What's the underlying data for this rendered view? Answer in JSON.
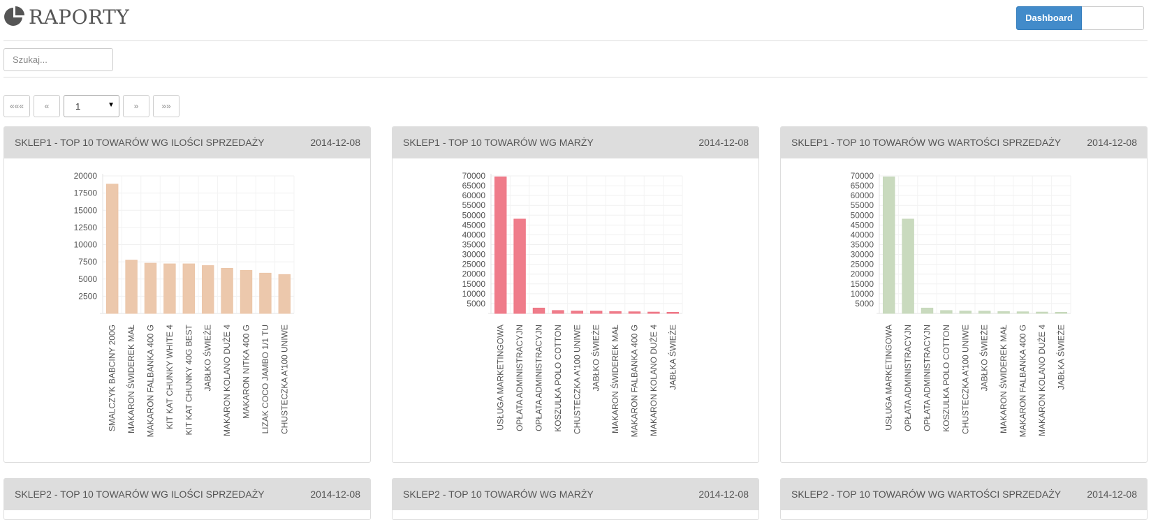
{
  "header": {
    "title": "RAPORTY",
    "logo_icon": "pie-chart-icon",
    "dashboard_label": "Dashboard"
  },
  "search": {
    "placeholder": "Szukaj..."
  },
  "pager": {
    "first": "«««",
    "prev": "«",
    "page": "1",
    "next": "»",
    "last": "»»"
  },
  "colors": {
    "accent": "#428bca",
    "bar_orange": "#ebc5a8",
    "bar_red": "#ee7584",
    "bar_green": "#c6d8bb"
  },
  "panels": [
    {
      "title": "SKLEP1 - TOP 10 TOWARÓW WG ILOŚCI SPRZEDAŻY",
      "date": "2014-12-08",
      "chart_data": {
        "type": "bar",
        "color": "#ebc5a8",
        "ylim": [
          0,
          20000
        ],
        "yticks": [
          2500,
          5000,
          7500,
          10000,
          12500,
          15000,
          17500,
          20000
        ],
        "categories": [
          "SMALCZYK BABCINY 200G",
          "MAKARON ŚWIDEREK MAŁ",
          "MAKARON FALBANKA 400 G",
          "KIT KAT CHUNKY WHITE 4",
          "KIT KAT CHUNKY 40G BEST",
          "JABŁKO ŚWIEŻE",
          "MAKARON KOLANO DUŻE 4",
          "MAKARON NITKA 400 G",
          "LIZAK COCO JAMBO 1/1 TU",
          "CHUSTECZKA A'100 UNIWE"
        ],
        "values": [
          18800,
          7750,
          7300,
          7200,
          7200,
          6950,
          6550,
          6250,
          5850,
          5650
        ]
      }
    },
    {
      "title": "SKLEP1 - TOP 10 TOWARÓW WG MARŻY",
      "date": "2014-12-08",
      "chart_data": {
        "type": "bar",
        "color": "#ee7584",
        "ylim": [
          0,
          70000
        ],
        "yticks": [
          5000,
          10000,
          15000,
          20000,
          25000,
          30000,
          35000,
          40000,
          45000,
          50000,
          55000,
          60000,
          65000,
          70000
        ],
        "categories": [
          "USŁUGA MARKETINGOWA",
          "OPŁATA ADMINISTRACYJN",
          "OPŁATA ADMINISTRACYJN",
          "KOSZULKA POLO COTTON",
          "CHUSTECZKA A'100 UNIWE",
          "JABŁKO ŚWIEŻE",
          "MAKARON ŚWIDEREK MAŁ",
          "MAKARON FALBANKA 400 G",
          "MAKARON KOLANO DUŻE 4",
          "JABŁKA ŚWIEŻE"
        ],
        "values": [
          69500,
          48000,
          2700,
          1450,
          1200,
          1150,
          900,
          800,
          650,
          550
        ]
      }
    },
    {
      "title": "SKLEP1 - TOP 10 TOWARÓW WG WARTOŚCI SPRZEDAŻY",
      "date": "2014-12-08",
      "chart_data": {
        "type": "bar",
        "color": "#c6d8bb",
        "ylim": [
          0,
          70000
        ],
        "yticks": [
          5000,
          10000,
          15000,
          20000,
          25000,
          30000,
          35000,
          40000,
          45000,
          50000,
          55000,
          60000,
          65000,
          70000
        ],
        "categories": [
          "USŁUGA MARKETINGOWA",
          "OPŁATA ADMINISTRACYJN",
          "OPŁATA ADMINISTRACYJN",
          "KOSZULKA POLO COTTON",
          "CHUSTECZKA A'100 UNIWE",
          "JABŁKO ŚWIEŻE",
          "MAKARON ŚWIDEREK MAŁ",
          "MAKARON FALBANKA 400 G",
          "MAKARON KOLANO DUŻE 4",
          "JABŁKA ŚWIEŻE"
        ],
        "values": [
          69500,
          48000,
          2700,
          1450,
          1200,
          1150,
          900,
          800,
          650,
          550
        ]
      }
    },
    {
      "title": "SKLEP2 - TOP 10 TOWARÓW WG ILOŚCI SPRZEDAŻY",
      "date": "2014-12-08"
    },
    {
      "title": "SKLEP2 - TOP 10 TOWARÓW WG MARŻY",
      "date": "2014-12-08"
    },
    {
      "title": "SKLEP2 - TOP 10 TOWARÓW WG WARTOŚCI SPRZEDAŻY",
      "date": "2014-12-08"
    }
  ]
}
